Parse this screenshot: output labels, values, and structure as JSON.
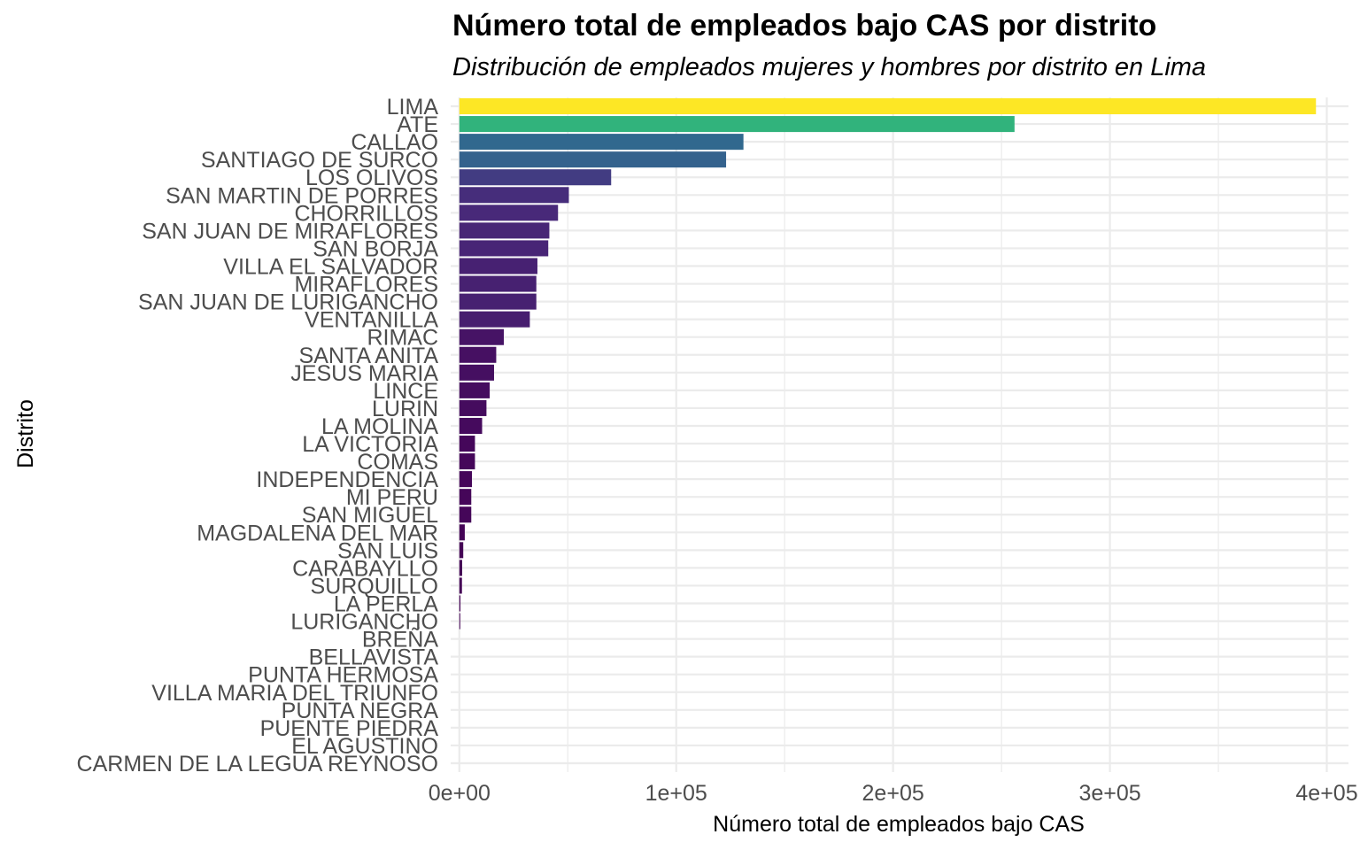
{
  "chart_data": {
    "type": "bar",
    "orientation": "horizontal",
    "title": "Número total de empleados bajo CAS por distrito",
    "subtitle": "Distribución de empleados mujeres y hombres por distrito en Lima",
    "xlabel": "Número total de empleados bajo CAS",
    "ylabel": "Distrito",
    "xlim": [
      -4000,
      410000
    ],
    "x_ticks": [
      0,
      100000,
      200000,
      300000,
      400000
    ],
    "x_tick_labels": [
      "0e+00",
      "1e+05",
      "2e+05",
      "3e+05",
      "4e+05"
    ],
    "categories": [
      "LIMA",
      "ATE",
      "CALLAO",
      "SANTIAGO DE SURCO",
      "LOS OLIVOS",
      "SAN MARTIN DE PORRES",
      "CHORRILLOS",
      "SAN JUAN DE MIRAFLORES",
      "SAN BORJA",
      "VILLA EL SALVADOR",
      "MIRAFLORES",
      "SAN JUAN DE LURIGANCHO",
      "VENTANILLA",
      "RIMAC",
      "SANTA ANITA",
      "JESUS MARIA",
      "LINCE",
      "LURIN",
      "LA MOLINA",
      "LA VICTORIA",
      "COMAS",
      "INDEPENDENCIA",
      "MI PERU",
      "SAN MIGUEL",
      "MAGDALENA DEL MAR",
      "SAN LUIS",
      "CARABAYLLO",
      "SURQUILLO",
      "LA PERLA",
      "LURIGANCHO",
      "BREÑA",
      "BELLAVISTA",
      "PUNTA HERMOSA",
      "VILLA MARIA DEL TRIUNFO",
      "PUNTA NEGRA",
      "PUENTE PIEDRA",
      "EL AGUSTINO",
      "CARMEN DE LA LEGUA REYNOSO"
    ],
    "values": [
      395000,
      256000,
      131000,
      123000,
      70000,
      50500,
      45500,
      41500,
      41000,
      36000,
      35500,
      35500,
      32500,
      20500,
      17000,
      16000,
      14000,
      12500,
      10500,
      7200,
      7200,
      5800,
      5500,
      5500,
      2500,
      1800,
      1300,
      1200,
      500,
      300,
      0,
      0,
      0,
      0,
      0,
      0,
      0,
      0
    ],
    "color_scale": "viridis",
    "grid": true,
    "legend": "none"
  }
}
